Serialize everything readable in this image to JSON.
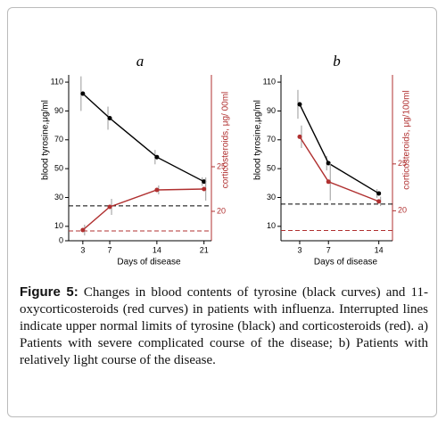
{
  "chart_data": [
    {
      "type": "line",
      "title": "a",
      "xlabel": "Days of disease",
      "ylabel": "blood tyrosine,μg/ml",
      "y2label": "corticosteroids, μg/ 00ml",
      "xlim": [
        0.9,
        22.1
      ],
      "xticks": [
        3,
        7,
        14,
        21
      ],
      "ylim": [
        0,
        115
      ],
      "yticks": [
        0,
        10,
        30,
        50,
        70,
        90,
        110
      ],
      "y2lim": [
        16.7,
        35.3
      ],
      "y2ticks": [
        20,
        25
      ],
      "x": [
        3,
        7,
        14,
        21
      ],
      "series": [
        {
          "color": "#000000",
          "values": [
            102,
            85,
            58,
            41
          ],
          "errors": [
            12,
            8,
            5,
            3
          ]
        },
        {
          "color": "#b03030",
          "axis": "y2",
          "values": [
            17.9,
            20.5,
            22.4,
            22.5
          ],
          "errors": [
            0.6,
            0.9,
            0.5,
            1.3
          ]
        }
      ],
      "reference_lines": [
        {
          "axis": "y",
          "value": 24.2,
          "color": "#000000"
        },
        {
          "axis": "y2",
          "value": 17.8,
          "color": "#b03030"
        }
      ]
    },
    {
      "type": "line",
      "title": "b",
      "xlabel": "Days of disease",
      "ylabel": "blood tyrosine,μg/ml",
      "y2label": "corticosteroids, μg/100ml",
      "xlim": [
        0.4,
        15.9
      ],
      "xticks": [
        3,
        7,
        14
      ],
      "ylim": [
        0,
        115
      ],
      "yticks": [
        10,
        30,
        50,
        70,
        90,
        110
      ],
      "y2lim": [
        16.8,
        34.5
      ],
      "y2ticks": [
        20,
        25
      ],
      "x": [
        3,
        7,
        14
      ],
      "series": [
        {
          "color": "#000000",
          "values": [
            94.6,
            53.8,
            32.8
          ],
          "errors": [
            10,
            5,
            3
          ]
        },
        {
          "color": "#b03030",
          "axis": "y2",
          "values": [
            27.9,
            23.1,
            21.0
          ],
          "errors": [
            1.2,
            2,
            0.5
          ]
        }
      ],
      "reference_lines": [
        {
          "axis": "y",
          "value": 25.4,
          "color": "#000000"
        },
        {
          "axis": "y2",
          "value": 17.9,
          "color": "#b03030"
        }
      ]
    }
  ],
  "caption": {
    "label": "Figure 5:",
    "text": "Changes in blood contents of tyrosine (black curves) and 11-oxycorticosteroids (red curves) in patients with influenza. Interrupted lines indicate upper normal limits of tyrosine (black) and corticosteroids (red). a) Patients with severe complicated course of the disease; b) Patients with relatively light course of the disease."
  }
}
